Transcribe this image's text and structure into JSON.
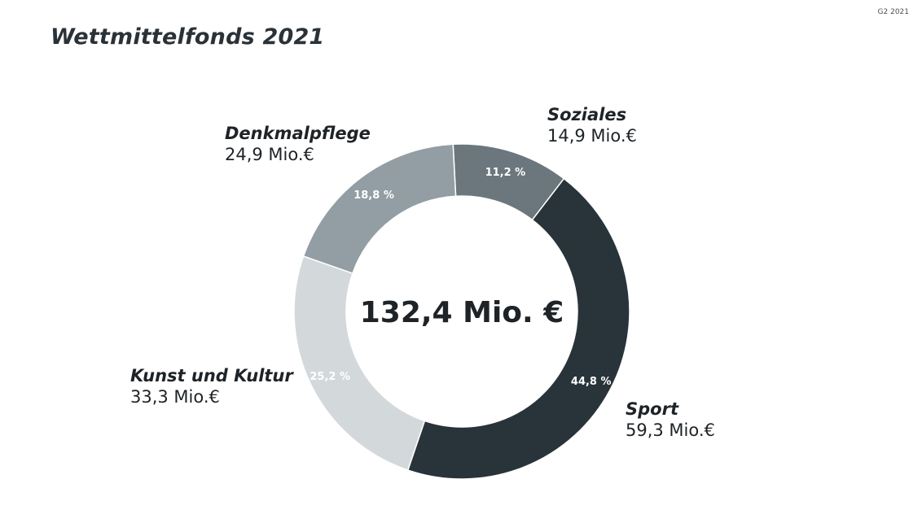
{
  "corner_text": "G2 2021",
  "chart_data": {
    "type": "pie",
    "title": "Wettmittelfonds 2021",
    "center_label": "132,4 Mio. €",
    "slices": [
      {
        "name": "Soziales",
        "amount_label": "14,9 Mio.€",
        "value": 14.9,
        "percent": 11.2,
        "percent_label": "11,2 %",
        "color": "#6b777d",
        "label_color": "#ffffff"
      },
      {
        "name": "Sport",
        "amount_label": "59,3 Mio.€",
        "value": 59.3,
        "percent": 44.8,
        "percent_label": "44,8 %",
        "color": "#29333a",
        "label_color": "#ffffff"
      },
      {
        "name": "Kunst und Kultur",
        "amount_label": "33,3 Mio.€",
        "value": 33.3,
        "percent": 25.2,
        "percent_label": "25,2 %",
        "color": "#d3d8db",
        "label_color": "#ffffff"
      },
      {
        "name": "Denkmalpflege",
        "amount_label": "24,9 Mio.€",
        "value": 24.9,
        "percent": 18.8,
        "percent_label": "18,8 %",
        "color": "#929ea4",
        "label_color": "#ffffff"
      }
    ]
  }
}
